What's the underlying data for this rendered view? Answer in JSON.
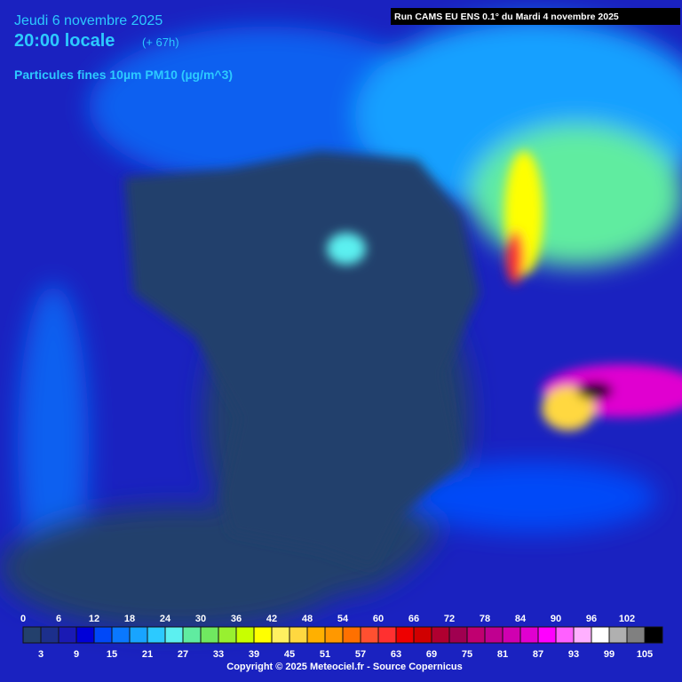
{
  "header": {
    "date": "Jeudi 6 novembre 2025",
    "time": "20:00 locale",
    "lead": "(+ 67h)",
    "variable": "Particules fines 10µm PM10 (µg/m^3)",
    "run": "Run CAMS EU ENS 0.1° du Mardi 4 novembre 2025"
  },
  "scale": {
    "ticks": [
      0,
      3,
      6,
      9,
      12,
      15,
      18,
      21,
      24,
      27,
      30,
      33,
      36,
      39,
      42,
      45,
      48,
      51,
      54,
      57,
      60,
      63,
      66,
      69,
      72,
      75,
      78,
      81,
      84,
      87,
      90,
      93,
      96,
      99,
      102,
      105
    ],
    "colors": [
      "#23406c",
      "#1c2f8c",
      "#1a1ab4",
      "#0000d8",
      "#0048f8",
      "#0a78ff",
      "#18a4ff",
      "#2ccaff",
      "#5cf0f0",
      "#60eca0",
      "#70e860",
      "#98f030",
      "#c8ff00",
      "#ffff00",
      "#fff060",
      "#ffd840",
      "#ffb000",
      "#ff9800",
      "#ff7000",
      "#ff5030",
      "#ff3030",
      "#ee0000",
      "#d00000",
      "#b00030",
      "#a00050",
      "#c00070",
      "#c00090",
      "#d000b0",
      "#e000d0",
      "#ff00ff",
      "#ff60ff",
      "#ffb0ff",
      "#ffffff",
      "#b0b0b0",
      "#808080",
      "#000000"
    ]
  },
  "footer": {
    "copyright": "Copyright © 2025 Meteociel.fr - Source Copernicus"
  }
}
